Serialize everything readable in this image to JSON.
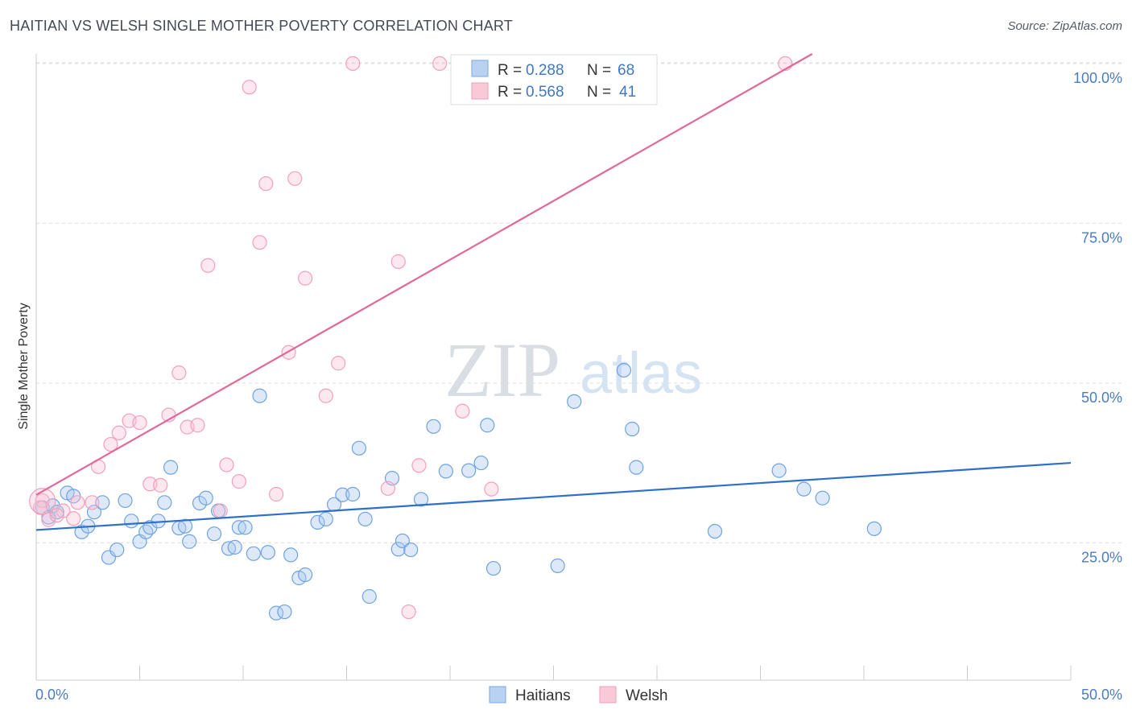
{
  "title": "HAITIAN VS WELSH SINGLE MOTHER POVERTY CORRELATION CHART",
  "source": "Source: ZipAtlas.com",
  "watermark": {
    "part1": "ZIP",
    "part2": "atlas"
  },
  "legend": {
    "rows": [
      {
        "r_label": "R =",
        "r_value": "0.288",
        "n_label": "N =",
        "n_value": "68"
      },
      {
        "r_label": "R =",
        "r_value": "0.568",
        "n_label": "N =",
        "n_value": "41"
      }
    ]
  },
  "bottom_legend": {
    "haitians": "Haitians",
    "welsh": "Welsh"
  },
  "chart_data": {
    "type": "scatter",
    "title": "HAITIAN VS WELSH SINGLE MOTHER POVERTY CORRELATION CHART",
    "xlabel": "",
    "ylabel": "Single Mother Poverty",
    "xlim": [
      0,
      50
    ],
    "ylim": [
      3.5,
      101.5
    ],
    "x_tick_labels": [
      "0.0%",
      "50.0%"
    ],
    "y_tick_labels": [
      {
        "value": 25,
        "label": "25.0%"
      },
      {
        "value": 50,
        "label": "50.0%"
      },
      {
        "value": 75,
        "label": "75.0%"
      },
      {
        "value": 100,
        "label": "100.0%"
      }
    ],
    "grid": true,
    "legend_placement": "top-center",
    "colors": {
      "haitians": "#6fa3e0",
      "haitians_line": "#2e6fcc",
      "welsh": "#f2a0bb",
      "welsh_line": "#e0689a",
      "tick": "#4a7cc4"
    },
    "series": [
      {
        "name": "Haitians",
        "r": 0.288,
        "n": 68,
        "trend": [
          [
            0,
            27.0
          ],
          [
            50,
            37.5
          ]
        ],
        "points": [
          [
            0.3,
            30.5
          ],
          [
            0.6,
            29.0
          ],
          [
            0.8,
            30.8
          ],
          [
            1.0,
            29.8
          ],
          [
            1.5,
            32.8
          ],
          [
            1.8,
            32.3
          ],
          [
            2.2,
            26.7
          ],
          [
            2.5,
            27.6
          ],
          [
            2.8,
            29.8
          ],
          [
            3.2,
            31.3
          ],
          [
            3.5,
            22.7
          ],
          [
            3.9,
            23.9
          ],
          [
            4.3,
            31.6
          ],
          [
            4.6,
            28.4
          ],
          [
            5.0,
            25.2
          ],
          [
            5.3,
            26.7
          ],
          [
            5.5,
            27.4
          ],
          [
            5.9,
            28.4
          ],
          [
            6.2,
            31.3
          ],
          [
            6.5,
            36.8
          ],
          [
            6.9,
            27.3
          ],
          [
            7.2,
            27.6
          ],
          [
            7.4,
            25.2
          ],
          [
            7.9,
            31.2
          ],
          [
            8.2,
            32.0
          ],
          [
            8.6,
            26.4
          ],
          [
            8.8,
            30.0
          ],
          [
            9.3,
            24.1
          ],
          [
            9.6,
            24.3
          ],
          [
            9.8,
            27.4
          ],
          [
            10.1,
            27.4
          ],
          [
            10.5,
            23.3
          ],
          [
            10.8,
            48.0
          ],
          [
            11.2,
            23.5
          ],
          [
            11.6,
            14.0
          ],
          [
            12.0,
            14.2
          ],
          [
            12.3,
            23.1
          ],
          [
            12.7,
            19.5
          ],
          [
            13.0,
            20.0
          ],
          [
            13.6,
            28.2
          ],
          [
            14.0,
            28.7
          ],
          [
            14.4,
            31.0
          ],
          [
            14.8,
            32.5
          ],
          [
            15.3,
            32.6
          ],
          [
            15.6,
            39.8
          ],
          [
            15.9,
            28.7
          ],
          [
            16.1,
            16.6
          ],
          [
            17.2,
            35.1
          ],
          [
            17.5,
            24.0
          ],
          [
            17.7,
            25.3
          ],
          [
            18.1,
            23.9
          ],
          [
            18.6,
            31.8
          ],
          [
            19.2,
            43.2
          ],
          [
            19.8,
            36.2
          ],
          [
            20.9,
            36.3
          ],
          [
            21.5,
            37.5
          ],
          [
            21.8,
            43.4
          ],
          [
            22.1,
            21.0
          ],
          [
            25.2,
            21.4
          ],
          [
            26.0,
            47.1
          ],
          [
            28.4,
            52.0
          ],
          [
            28.8,
            42.8
          ],
          [
            29.0,
            36.8
          ],
          [
            32.8,
            26.8
          ],
          [
            35.9,
            36.3
          ],
          [
            37.1,
            33.4
          ],
          [
            38.0,
            32.0
          ],
          [
            40.5,
            27.2
          ]
        ]
      },
      {
        "name": "Welsh",
        "r": 0.568,
        "n": 41,
        "trend": [
          [
            0,
            32.5
          ],
          [
            37.5,
            101.5
          ]
        ],
        "points": [
          [
            0.3,
            31.6
          ],
          [
            0.6,
            28.6
          ],
          [
            1.3,
            30.0
          ],
          [
            1.8,
            28.8
          ],
          [
            2.0,
            31.3
          ],
          [
            2.7,
            31.3
          ],
          [
            3.0,
            36.9
          ],
          [
            3.6,
            40.4
          ],
          [
            4.0,
            42.2
          ],
          [
            4.5,
            44.1
          ],
          [
            5.0,
            43.8
          ],
          [
            5.5,
            34.2
          ],
          [
            6.0,
            34.0
          ],
          [
            6.4,
            45.0
          ],
          [
            6.9,
            51.6
          ],
          [
            7.3,
            43.1
          ],
          [
            7.8,
            43.4
          ],
          [
            8.3,
            68.4
          ],
          [
            8.9,
            30.0
          ],
          [
            9.2,
            37.2
          ],
          [
            9.8,
            34.6
          ],
          [
            10.3,
            96.3
          ],
          [
            10.8,
            72.0
          ],
          [
            11.1,
            81.2
          ],
          [
            11.6,
            32.6
          ],
          [
            12.2,
            54.8
          ],
          [
            12.5,
            82.0
          ],
          [
            13.0,
            66.4
          ],
          [
            14.0,
            48.0
          ],
          [
            14.6,
            53.1
          ],
          [
            15.3,
            100.0
          ],
          [
            17.0,
            33.5
          ],
          [
            17.5,
            69.0
          ],
          [
            18.0,
            14.2
          ],
          [
            18.5,
            37.1
          ],
          [
            19.5,
            100.0
          ],
          [
            20.6,
            45.6
          ],
          [
            22.0,
            33.4
          ],
          [
            36.2,
            100.0
          ],
          [
            0.2,
            30.5
          ],
          [
            1.0,
            29.3
          ]
        ]
      }
    ]
  }
}
